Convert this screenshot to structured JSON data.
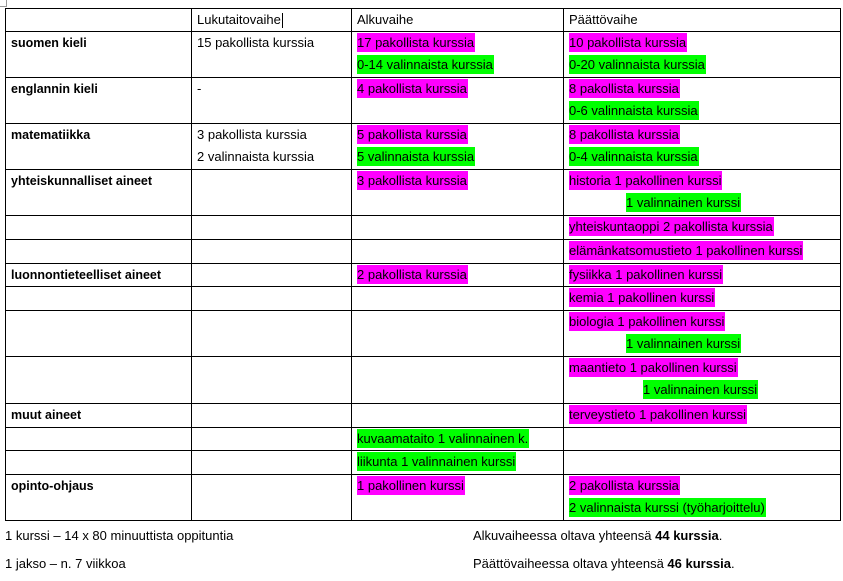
{
  "table": {
    "headers": [
      "",
      "Lukutaitovaihe",
      "Alkuvaihe",
      "Päättövaihe"
    ],
    "rows": [
      {
        "subject": "suomen kieli",
        "h": 46,
        "luku": [
          {
            "t": "15 pakollista kurssia"
          }
        ],
        "alku": [
          {
            "t": "17 pakollista kurssia",
            "c": "pink"
          },
          {
            "t": "0-14 valinnaista kurssia",
            "c": "green"
          }
        ],
        "paatto": [
          {
            "t": "10 pakollista kurssia",
            "c": "pink"
          },
          {
            "t": "0-20 valinnaista kurssia",
            "c": "green"
          }
        ]
      },
      {
        "subject": "englannin kieli",
        "h": 46,
        "luku": [
          {
            "t": "-"
          }
        ],
        "alku": [
          {
            "t": "4 pakollista kurssia",
            "c": "pink"
          }
        ],
        "paatto": [
          {
            "t": "8 pakollista kurssia",
            "c": "pink"
          },
          {
            "t": "0-6 valinnaista kurssia",
            "c": "green"
          }
        ]
      },
      {
        "subject": "matematiikka",
        "h": 46,
        "luku": [
          {
            "t": "3 pakollista kurssia"
          },
          {
            "t": "2 valinnaista kurssia"
          }
        ],
        "alku": [
          {
            "t": "5 pakollista kurssia",
            "c": "pink"
          },
          {
            "t": "5 valinnaista kurssia",
            "c": "green"
          }
        ],
        "paatto": [
          {
            "t": "8 pakollista kurssia",
            "c": "pink"
          },
          {
            "t": "0-4 valinnaista kurssia",
            "c": "green"
          }
        ]
      },
      {
        "subject": "yhteiskunnalliset aineet",
        "h": 46,
        "luku": [],
        "alku": [
          {
            "t": "3 pakollista kurssia",
            "c": "pink"
          }
        ],
        "paatto": [
          {
            "t": "historia 1 pakollinen kurssi",
            "c": "pink"
          },
          {
            "t": "1 valinnainen kurssi",
            "c": "green",
            "i": 1
          }
        ]
      },
      {
        "subject": "",
        "h": 24,
        "luku": [],
        "alku": [],
        "paatto": [
          {
            "t": "yhteiskuntaoppi 2 pakollista kurssia",
            "c": "pink"
          }
        ]
      },
      {
        "subject": "",
        "h": 24,
        "luku": [],
        "alku": [],
        "paatto": [
          {
            "t": "elämänkatsomustieto 1 pakollinen kurssi",
            "c": "pink"
          }
        ]
      },
      {
        "subject": "luonnontieteelliset aineet",
        "h": 23,
        "luku": [],
        "alku": [
          {
            "t": "2 pakollista kurssia",
            "c": "pink"
          }
        ],
        "paatto": [
          {
            "t": "fysiikka 1 pakollinen kurssi",
            "c": "pink"
          }
        ]
      },
      {
        "subject": "",
        "h": 24,
        "luku": [],
        "alku": [],
        "paatto": [
          {
            "t": "kemia 1 pakollinen kurssi",
            "c": "pink"
          }
        ]
      },
      {
        "subject": "",
        "h": 46,
        "luku": [],
        "alku": [],
        "paatto": [
          {
            "t": "biologia 1 pakollinen kurssi",
            "c": "pink"
          },
          {
            "t": "1 valinnainen kurssi",
            "c": "green",
            "i": 1
          }
        ]
      },
      {
        "subject": "",
        "h": 47,
        "luku": [],
        "alku": [],
        "paatto": [
          {
            "t": "maantieto 1 pakollinen kurssi",
            "c": "pink"
          },
          {
            "t": "1 valinnainen kurssi",
            "c": "green",
            "i": 2
          }
        ]
      },
      {
        "subject": "muut aineet",
        "h": 24,
        "luku": [],
        "alku": [],
        "paatto": [
          {
            "t": "terveystieto 1 pakollinen kurssi",
            "c": "pink"
          }
        ]
      },
      {
        "subject": "",
        "h": 23,
        "luku": [],
        "alku": [
          {
            "t": "kuvaamataito 1 valinnainen k.",
            "c": "green"
          }
        ],
        "paatto": []
      },
      {
        "subject": "",
        "h": 24,
        "luku": [],
        "alku": [
          {
            "t": "liikunta 1 valinnainen kurssi",
            "c": "green"
          }
        ],
        "paatto": []
      },
      {
        "subject": "opinto-ohjaus",
        "h": 46,
        "luku": [],
        "alku": [
          {
            "t": "1 pakollinen kurssi",
            "c": "pink"
          }
        ],
        "paatto": [
          {
            "t": "2 pakollista kurssia",
            "c": "pink"
          },
          {
            "t": "2 valinnaista kurssi (työharjoittelu)",
            "c": "green"
          }
        ]
      }
    ]
  },
  "footer": {
    "left1": "1 kurssi – 14 x 80 minuuttista oppituntia",
    "left2": "1 jakso – n. 7 viikkoa",
    "right1_pre": "Alkuvaiheessa oltava yhteensä ",
    "right1_bold": "44 kurssia",
    "right1_post": ".",
    "right2_pre": "Päättövaiheessa oltava yhteensä ",
    "right2_bold": "46 kurssia",
    "right2_post": "."
  },
  "colors": {
    "mandatory": "#ff00ff",
    "optional": "#00ff00"
  }
}
